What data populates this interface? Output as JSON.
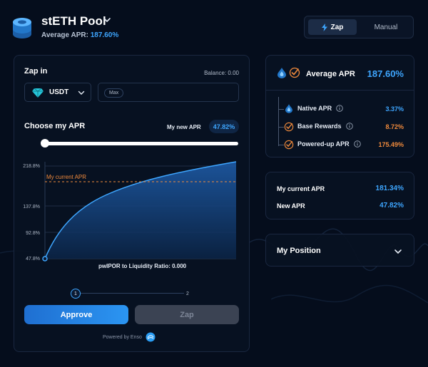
{
  "header": {
    "pool_title": "stETH Pool",
    "avg_apr_label": "Average APR:",
    "avg_apr_value": "187.60%",
    "modes": {
      "zap": "Zap",
      "manual": "Manual",
      "active": "Zap"
    }
  },
  "zap_panel": {
    "zap_in_label": "Zap in",
    "balance_text": "Balance: 0.00",
    "token": "USDT",
    "amount_value": "",
    "max_label": "Max",
    "choose_apr_label": "Choose my APR",
    "new_apr_label": "My new APR",
    "new_apr_value": "47.82%",
    "slider_fraction": 0.0,
    "chart": {
      "y_ticks": [
        "218.8%",
        "137.8%",
        "92.8%",
        "47.8%"
      ],
      "current_apr_label": "My current APR",
      "x_label": "pwIPOR to Liquidity Ratio: 0.000"
    },
    "steps": [
      "1",
      "2"
    ],
    "active_step": "1",
    "approve_label": "Approve",
    "zap_label": "Zap",
    "powered_by": "Powered by Enso"
  },
  "apr_panel": {
    "title": "Average APR",
    "value": "187.60%",
    "rows": [
      {
        "label": "Native APR",
        "value": "3.37%",
        "color": "#3ea6ff"
      },
      {
        "label": "Base Rewards",
        "value": "8.72%",
        "color": "#f08a3c"
      },
      {
        "label": "Powered-up APR",
        "value": "175.49%",
        "color": "#f08a3c"
      }
    ]
  },
  "my_apr_panel": {
    "current_label": "My current APR",
    "current_value": "181.34%",
    "new_label": "New APR",
    "new_value": "47.82%"
  },
  "position_panel": {
    "title": "My Position"
  },
  "colors": {
    "accent": "#3ea6ff",
    "orange": "#f08a3c",
    "background": "#050d1c"
  }
}
